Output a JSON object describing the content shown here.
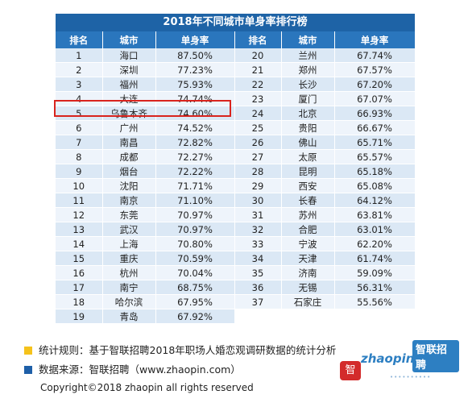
{
  "title": "2018年不同城市单身率排行榜",
  "headers": [
    "排名",
    "城市",
    "单身率",
    "排名",
    "城市",
    "单身率"
  ],
  "rows": [
    [
      "1",
      "海口",
      "87.50%",
      "20",
      "兰州",
      "67.74%"
    ],
    [
      "2",
      "深圳",
      "77.23%",
      "21",
      "郑州",
      "67.57%"
    ],
    [
      "3",
      "福州",
      "75.93%",
      "22",
      "长沙",
      "67.20%"
    ],
    [
      "4",
      "大连",
      "74.74%",
      "23",
      "厦门",
      "67.07%"
    ],
    [
      "5",
      "乌鲁木齐",
      "74.60%",
      "24",
      "北京",
      "66.93%"
    ],
    [
      "6",
      "广州",
      "74.52%",
      "25",
      "贵阳",
      "66.67%"
    ],
    [
      "7",
      "南昌",
      "72.82%",
      "26",
      "佛山",
      "65.71%"
    ],
    [
      "8",
      "成都",
      "72.27%",
      "27",
      "太原",
      "65.57%"
    ],
    [
      "9",
      "烟台",
      "72.22%",
      "28",
      "昆明",
      "65.18%"
    ],
    [
      "10",
      "沈阳",
      "71.71%",
      "29",
      "西安",
      "65.08%"
    ],
    [
      "11",
      "南京",
      "71.10%",
      "30",
      "长春",
      "64.12%"
    ],
    [
      "12",
      "东莞",
      "70.97%",
      "31",
      "苏州",
      "63.81%"
    ],
    [
      "13",
      "武汉",
      "70.97%",
      "32",
      "合肥",
      "63.01%"
    ],
    [
      "14",
      "上海",
      "70.80%",
      "33",
      "宁波",
      "62.20%"
    ],
    [
      "15",
      "重庆",
      "70.59%",
      "34",
      "天津",
      "61.74%"
    ],
    [
      "16",
      "杭州",
      "70.04%",
      "35",
      "济南",
      "59.09%"
    ],
    [
      "17",
      "南宁",
      "68.75%",
      "36",
      "无锡",
      "56.31%"
    ],
    [
      "18",
      "哈尔滨",
      "67.95%",
      "37",
      "石家庄",
      "55.56%"
    ],
    [
      "19",
      "青岛",
      "67.92%",
      "",
      "",
      ""
    ]
  ],
  "highlight_rank": "5",
  "legend": [
    {
      "text": "统计规则：基于智联招聘2018年职场人婚恋观调研数据的统计分析",
      "color": "#f5c21b"
    },
    {
      "text": "数据来源：智联招聘（www.zhaopin.com）",
      "color": "#1e5fa8"
    }
  ],
  "copyright": "Copyright©2018 zhaopin all rights reserved",
  "logo": {
    "cn": "智联招聘",
    "en": "zhaopin.com",
    "stamp": "智"
  },
  "colors": {
    "header_dark": "#1e63a6",
    "header": "#2a76bd",
    "row_a": "#dbe8f5",
    "row_b": "#eef4fb",
    "highlight": "#d9241e"
  }
}
